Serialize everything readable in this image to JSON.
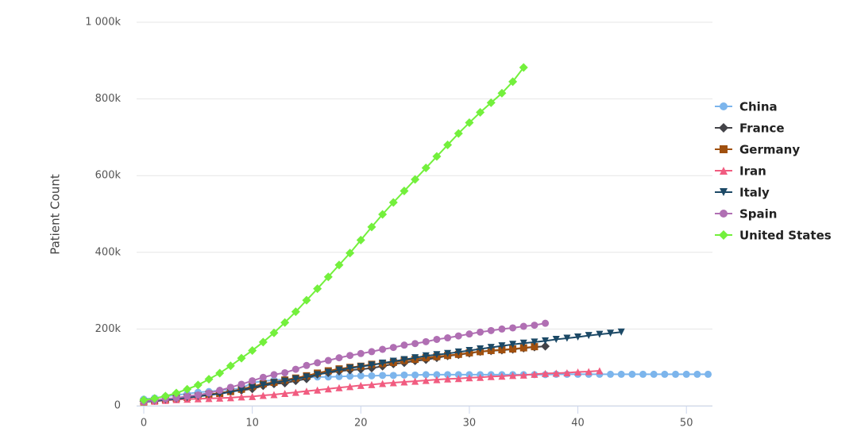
{
  "chart_data": {
    "type": "line",
    "y_label": "Patient Count",
    "x": [
      0,
      1,
      2,
      3,
      4,
      5,
      6,
      7,
      8,
      9,
      10,
      11,
      12,
      13,
      14,
      15,
      16,
      17,
      18,
      19,
      20,
      21,
      22,
      23,
      24,
      25,
      26,
      27,
      28,
      29,
      30,
      31,
      32,
      33,
      34,
      35,
      36,
      37,
      38,
      39,
      40,
      41,
      42,
      43,
      44,
      45,
      46,
      47,
      48,
      49,
      50,
      51,
      52
    ],
    "xlim": [
      -0.66,
      52.4
    ],
    "xticks": [
      0,
      10,
      20,
      30,
      40,
      50
    ],
    "ylim": [
      0,
      1000000
    ],
    "yticks": [
      0,
      {
        "value": 200000,
        "label": "200k"
      },
      {
        "value": 400000,
        "label": "400k"
      },
      {
        "value": 600000,
        "label": "600k"
      },
      {
        "value": 800000,
        "label": "800k"
      },
      {
        "value": 1000000,
        "label": "1 000k"
      }
    ],
    "grid": true,
    "legend": "right",
    "series": [
      {
        "name": "China",
        "color": "#7cb5ec",
        "marker": "circle",
        "values": [
          17000,
          20000,
          24000,
          28000,
          31000,
          35000,
          37000,
          40000,
          43000,
          45000,
          60000,
          64000,
          67000,
          69000,
          71000,
          73000,
          75000,
          75000,
          76000,
          77000,
          78000,
          78000,
          79000,
          79000,
          80000,
          80000,
          81000,
          81000,
          81000,
          81000,
          81000,
          81000,
          81000,
          81000,
          81000,
          81000,
          81000,
          81000,
          82000,
          82000,
          82000,
          82000,
          82000,
          82000,
          82000,
          82000,
          82000,
          82000,
          82000,
          82000,
          82000,
          82000,
          82000
        ]
      },
      {
        "name": "France",
        "color": "#434348",
        "marker": "diamond",
        "values": [
          12000,
          14000,
          16000,
          19000,
          23000,
          25000,
          29000,
          33000,
          38000,
          40000,
          44000,
          52000,
          57000,
          59000,
          65000,
          70000,
          82000,
          86000,
          90000,
          93000,
          95000,
          98000,
          103000,
          109000,
          112000,
          117000,
          120000,
          125000,
          130000,
          133000,
          137000,
          141000,
          143000,
          145000,
          147000,
          150000,
          153000,
          155000,
          null,
          null,
          null,
          null,
          null,
          null,
          null,
          null,
          null,
          null,
          null,
          null,
          null,
          null,
          null
        ]
      },
      {
        "name": "Germany",
        "color": "#a0500f",
        "marker": "square",
        "values": [
          10000,
          13000,
          16000,
          19000,
          22000,
          25000,
          30000,
          32000,
          37000,
          43000,
          50000,
          57000,
          61000,
          67000,
          72000,
          78000,
          85000,
          91000,
          96000,
          100000,
          103000,
          108000,
          110000,
          113000,
          118000,
          121000,
          125000,
          128000,
          131000,
          134000,
          138000,
          141000,
          144000,
          146000,
          148000,
          151000,
          154000,
          null,
          null,
          null,
          null,
          null,
          null,
          null,
          null,
          null,
          null,
          null,
          null,
          null,
          null,
          null,
          null
        ]
      },
      {
        "name": "Iran",
        "color": "#f15c80",
        "marker": "triangle",
        "values": [
          11000,
          12000,
          14000,
          16000,
          17000,
          18000,
          19000,
          20000,
          21000,
          23000,
          24000,
          27000,
          29000,
          32000,
          35000,
          38000,
          41000,
          44000,
          47000,
          50000,
          53000,
          55000,
          58000,
          60000,
          62000,
          64000,
          66000,
          68000,
          70000,
          71000,
          73000,
          74000,
          76000,
          77000,
          79000,
          80000,
          82000,
          84000,
          85000,
          86000,
          88000,
          89000,
          91000,
          null,
          null,
          null,
          null,
          null,
          null,
          null,
          null,
          null,
          null
        ]
      },
      {
        "name": "Italy",
        "color": "#1c4966",
        "marker": "triangle-down",
        "values": [
          10000,
          12000,
          15000,
          17000,
          21000,
          24000,
          28000,
          31000,
          36000,
          41000,
          47000,
          54000,
          60000,
          64000,
          70000,
          75000,
          81000,
          87000,
          93000,
          98000,
          102000,
          106000,
          111000,
          116000,
          120000,
          125000,
          130000,
          133000,
          136000,
          140000,
          144000,
          148000,
          152000,
          156000,
          160000,
          163000,
          166000,
          169000,
          173000,
          176000,
          179000,
          183000,
          186000,
          189000,
          192000,
          null,
          null,
          null,
          null,
          null,
          null,
          null,
          null
        ]
      },
      {
        "name": "Spain",
        "color": "#b06fb3",
        "marker": "circle",
        "values": [
          11000,
          14000,
          18000,
          20000,
          25000,
          28000,
          33000,
          40000,
          48000,
          56000,
          65000,
          74000,
          81000,
          86000,
          95000,
          105000,
          112000,
          118000,
          125000,
          131000,
          136000,
          141000,
          147000,
          152000,
          158000,
          162000,
          167000,
          173000,
          177000,
          182000,
          187000,
          192000,
          196000,
          200000,
          203000,
          207000,
          210000,
          215000,
          null,
          null,
          null,
          null,
          null,
          null,
          null,
          null,
          null,
          null,
          null,
          null,
          null,
          null,
          null
        ]
      },
      {
        "name": "United States",
        "color": "#73f03c",
        "marker": "diamond",
        "values": [
          15000,
          19000,
          25000,
          33000,
          43000,
          54000,
          69000,
          85000,
          104000,
          124000,
          144000,
          166000,
          190000,
          217000,
          245000,
          275000,
          305000,
          336000,
          367000,
          398000,
          432000,
          466000,
          499000,
          530000,
          560000,
          590000,
          620000,
          650000,
          680000,
          710000,
          738000,
          765000,
          790000,
          815000,
          845000,
          882000,
          null,
          null,
          null,
          null,
          null,
          null,
          null,
          null,
          null,
          null,
          null,
          null,
          null,
          null,
          null,
          null,
          null
        ]
      }
    ]
  }
}
